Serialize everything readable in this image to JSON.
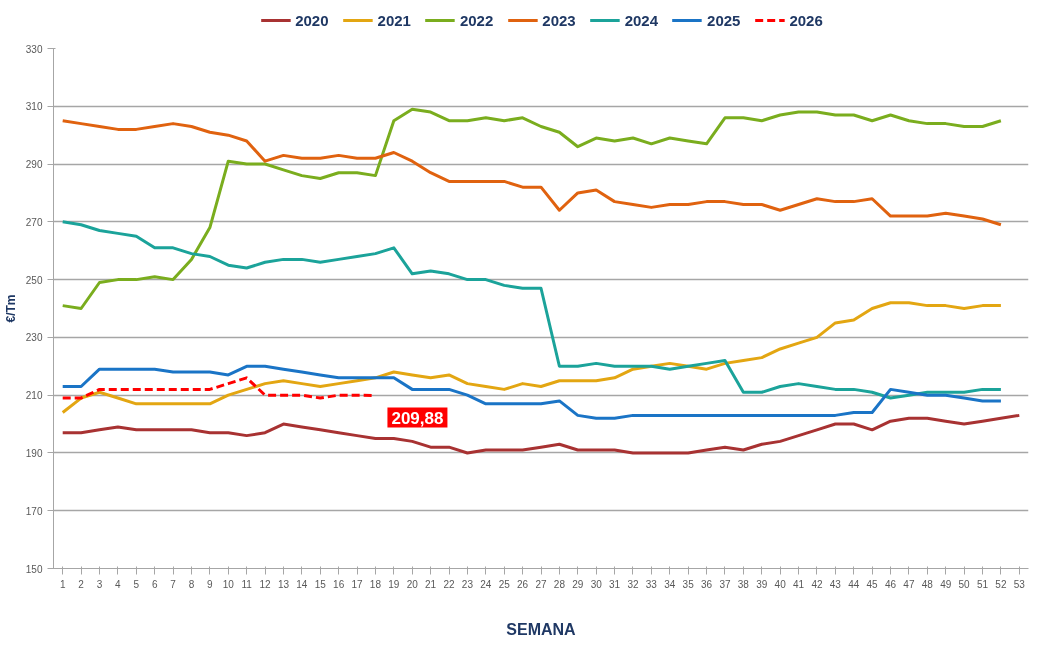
{
  "chart_data": {
    "type": "line",
    "xlabel": "SEMANA",
    "ylabel": "€/Tm",
    "x": [
      1,
      2,
      3,
      4,
      5,
      6,
      7,
      8,
      9,
      10,
      11,
      12,
      13,
      14,
      15,
      16,
      17,
      18,
      19,
      20,
      21,
      22,
      23,
      24,
      25,
      26,
      27,
      28,
      29,
      30,
      31,
      32,
      33,
      34,
      35,
      36,
      37,
      38,
      39,
      40,
      41,
      42,
      43,
      44,
      45,
      46,
      47,
      48,
      49,
      50,
      51,
      52
    ],
    "xlim": [
      0.5,
      53.5
    ],
    "xticks": [
      1,
      2,
      3,
      4,
      5,
      6,
      7,
      8,
      9,
      10,
      11,
      12,
      13,
      14,
      15,
      16,
      17,
      18,
      19,
      20,
      21,
      22,
      23,
      24,
      25,
      26,
      27,
      28,
      29,
      30,
      31,
      32,
      33,
      34,
      35,
      36,
      37,
      38,
      39,
      40,
      41,
      42,
      43,
      44,
      45,
      46,
      47,
      48,
      49,
      50,
      51,
      52,
      53
    ],
    "ylim": [
      150,
      330
    ],
    "yticks": [
      150,
      170,
      190,
      210,
      230,
      250,
      270,
      290,
      310,
      330
    ],
    "grid": "y",
    "legend": "top",
    "series": [
      {
        "name": "2020",
        "color": "#a83232",
        "line_style": "solid",
        "x": [
          1,
          2,
          3,
          4,
          5,
          6,
          7,
          8,
          9,
          10,
          11,
          12,
          13,
          14,
          15,
          16,
          17,
          18,
          19,
          20,
          21,
          22,
          23,
          24,
          25,
          26,
          27,
          28,
          29,
          30,
          31,
          32,
          33,
          34,
          35,
          36,
          37,
          38,
          39,
          40,
          41,
          42,
          43,
          44,
          45,
          46,
          47,
          48,
          49,
          50,
          51,
          52,
          53
        ],
        "values": [
          197,
          197,
          198,
          199,
          198,
          198,
          198,
          198,
          197,
          197,
          196,
          197,
          200,
          199,
          198,
          197,
          196,
          195,
          195,
          194,
          192,
          192,
          190,
          191,
          191,
          191,
          192,
          193,
          191,
          191,
          191,
          190,
          190,
          190,
          190,
          191,
          192,
          191,
          193,
          194,
          196,
          198,
          200,
          200,
          198,
          201,
          202,
          202,
          201,
          200,
          201,
          202,
          203
        ]
      },
      {
        "name": "2021",
        "color": "#e3a612",
        "line_style": "solid",
        "values": [
          204,
          209,
          211,
          209,
          207,
          207,
          207,
          207,
          207,
          210,
          212,
          214,
          215,
          214,
          213,
          214,
          215,
          216,
          218,
          217,
          216,
          217,
          214,
          213,
          212,
          214,
          213,
          215,
          215,
          215,
          216,
          219,
          220,
          221,
          220,
          219,
          221,
          222,
          223,
          226,
          228,
          230,
          235,
          236,
          240,
          242,
          242,
          241,
          241,
          240,
          241,
          241
        ]
      },
      {
        "name": "2022",
        "color": "#7aad1e",
        "line_style": "solid",
        "values": [
          241,
          240,
          249,
          250,
          250,
          251,
          250,
          257,
          268,
          291,
          290,
          290,
          288,
          286,
          285,
          287,
          287,
          286,
          305,
          309,
          308,
          305,
          305,
          306,
          305,
          306,
          303,
          301,
          296,
          299,
          298,
          299,
          297,
          299,
          298,
          297,
          306,
          306,
          305,
          307,
          308,
          308,
          307,
          307,
          305,
          307,
          305,
          304,
          304,
          303,
          303,
          305
        ]
      },
      {
        "name": "2023",
        "color": "#e0620f",
        "line_style": "solid",
        "values": [
          305,
          304,
          303,
          302,
          302,
          303,
          304,
          303,
          301,
          300,
          298,
          291,
          293,
          292,
          292,
          293,
          292,
          292,
          294,
          291,
          287,
          284,
          284,
          284,
          284,
          282,
          282,
          274,
          280,
          281,
          277,
          276,
          275,
          276,
          276,
          277,
          277,
          276,
          276,
          274,
          276,
          278,
          277,
          277,
          278,
          272,
          272,
          272,
          273,
          272,
          271,
          269
        ]
      },
      {
        "name": "2024",
        "color": "#1ba39a",
        "line_style": "solid",
        "values": [
          270,
          269,
          267,
          266,
          265,
          261,
          261,
          259,
          258,
          255,
          254,
          256,
          257,
          257,
          256,
          257,
          258,
          259,
          261,
          252,
          253,
          252,
          250,
          250,
          248,
          247,
          247,
          220,
          220,
          221,
          220,
          220,
          220,
          219,
          220,
          221,
          222,
          211,
          211,
          213,
          214,
          213,
          212,
          212,
          211,
          209,
          210,
          211,
          211,
          211,
          212,
          212
        ]
      },
      {
        "name": "2025",
        "color": "#1a74c6",
        "line_style": "solid",
        "values": [
          213,
          213,
          219,
          219,
          219,
          219,
          218,
          218,
          218,
          217,
          220,
          220,
          219,
          218,
          217,
          216,
          216,
          216,
          216,
          212,
          212,
          212,
          210,
          207,
          207,
          207,
          207,
          208,
          203,
          202,
          202,
          203,
          203,
          203,
          203,
          203,
          203,
          203,
          203,
          203,
          203,
          203,
          203,
          204,
          204,
          212,
          211,
          210,
          210,
          209,
          208,
          208
        ]
      },
      {
        "name": "2026",
        "color": "#ff0000",
        "line_style": "dashed",
        "x": [
          1,
          2,
          3,
          4,
          5,
          6,
          7,
          8,
          9,
          10,
          11,
          12,
          13,
          14,
          15,
          16,
          17,
          18
        ],
        "values": [
          209,
          209,
          212,
          212,
          212,
          212,
          212,
          212,
          212,
          214,
          216,
          210,
          210,
          210,
          209,
          210,
          210,
          209.88
        ]
      }
    ],
    "annotations": [
      {
        "text": "209,88",
        "x": 18,
        "y": 209.88
      }
    ]
  }
}
